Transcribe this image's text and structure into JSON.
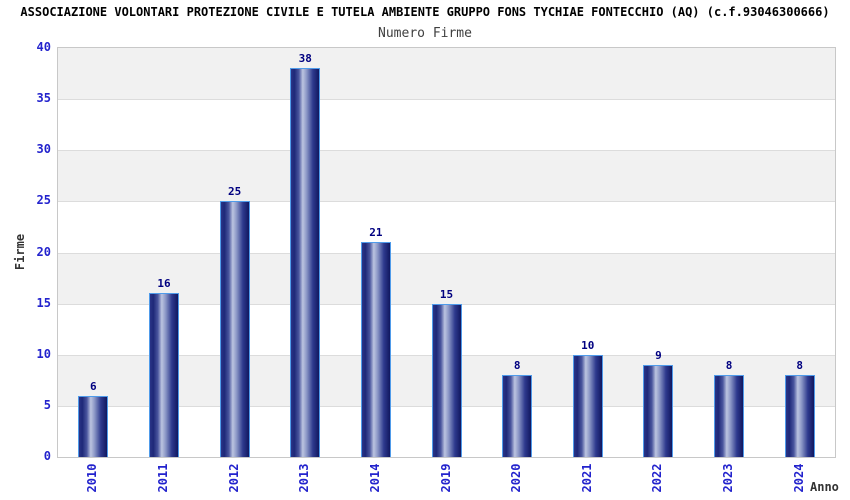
{
  "title": "ASSOCIAZIONE VOLONTARI PROTEZIONE CIVILE E TUTELA AMBIENTE GRUPPO FONS TYCHIAE FONTECCHIO (AQ) (c.f.93046300666)",
  "subtitle": "Numero Firme",
  "chart_data": {
    "type": "bar",
    "title": "Numero Firme",
    "categories": [
      "2010",
      "2011",
      "2012",
      "2013",
      "2014",
      "2019",
      "2020",
      "2021",
      "2022",
      "2023",
      "2024"
    ],
    "values": [
      6,
      16,
      25,
      38,
      21,
      15,
      8,
      10,
      9,
      8,
      8
    ],
    "xlabel": "Anno",
    "ylabel": "Firme",
    "ylim": [
      0,
      40
    ],
    "ytick_step": 5,
    "yticks": [
      0,
      5,
      10,
      15,
      20,
      25,
      30,
      35,
      40
    ],
    "legend_position": "none",
    "grid": "horizontal-bands-alternating"
  },
  "colors": {
    "title": "#000000",
    "subtitle": "#404040",
    "tick_label": "#2323cd",
    "value_label": "#000080",
    "axis_title": "#333333",
    "band_gray": "#f1f1f1",
    "band_white": "#ffffff",
    "grid_line": "#dcdcdc",
    "plot_border": "#c8c8c8",
    "bar_border": "#4f9bea",
    "bar_dark": "#11175f",
    "bar_mid": "#2a3487",
    "bar_light": "#bcc4e0"
  }
}
